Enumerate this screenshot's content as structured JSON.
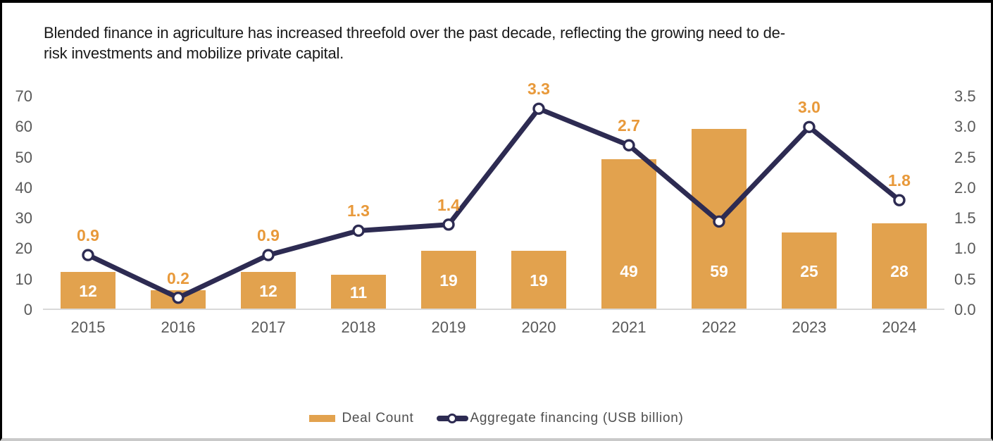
{
  "title": {
    "lines": [
      "Blended finance in agriculture has increased threefold over the past decade, reflecting the growing need to de-",
      "risk investments and mobilize private capital."
    ]
  },
  "colors": {
    "bar": "#E2A24E",
    "line": "#2D2B52",
    "marker_fill": "#FFFFFF",
    "bar_value_label": "#FFFFFF",
    "line_value_label": "#E8993A",
    "axis_text": "#595959",
    "title_text": "#1A1A1A",
    "baseline": "#D9D9D9",
    "legend_text": "#4F4F4F",
    "background": "#FFFFFF"
  },
  "chart_data": {
    "type": "combo-bar-line",
    "title": "Blended finance in agriculture has increased threefold over the past decade, reflecting the growing need to de-risk investments and mobilize private capital.",
    "categories": [
      "2015",
      "2016",
      "2017",
      "2018",
      "2019",
      "2020",
      "2021",
      "2022",
      "2023",
      "2024"
    ],
    "series": [
      {
        "name": "Deal Count",
        "type": "bar",
        "axis": "left",
        "values": [
          12,
          6,
          12,
          11,
          19,
          19,
          49,
          59,
          25,
          28
        ],
        "data_labels": [
          "12",
          null,
          "12",
          "11",
          "19",
          "19",
          "49",
          "59",
          "25",
          "28"
        ]
      },
      {
        "name": "Aggregate financing (USB billion)",
        "type": "line",
        "axis": "right",
        "values": [
          0.9,
          0.2,
          0.9,
          1.3,
          1.4,
          3.3,
          2.7,
          1.45,
          3.0,
          1.8
        ],
        "data_labels": [
          "0.9",
          "0.2",
          "0.9",
          "1.3",
          "1.4",
          "3.3",
          "2.7",
          null,
          "3.0",
          "1.8"
        ]
      }
    ],
    "left_axis": {
      "min": 0,
      "max": 70,
      "step": 10,
      "ticks": [
        "0",
        "10",
        "20",
        "30",
        "40",
        "50",
        "60",
        "70"
      ]
    },
    "right_axis": {
      "min": 0,
      "max": 3.5,
      "step": 0.5,
      "ticks": [
        "0.0",
        "0.5",
        "1.0",
        "1.5",
        "2.0",
        "2.5",
        "3.0",
        "3.5"
      ]
    },
    "grid": false,
    "legend_position": "bottom-center"
  },
  "legend": {
    "items": [
      {
        "label": "Deal Count",
        "swatch": "bar"
      },
      {
        "label": "Aggregate financing (USB billion)",
        "swatch": "line-marker"
      }
    ]
  }
}
